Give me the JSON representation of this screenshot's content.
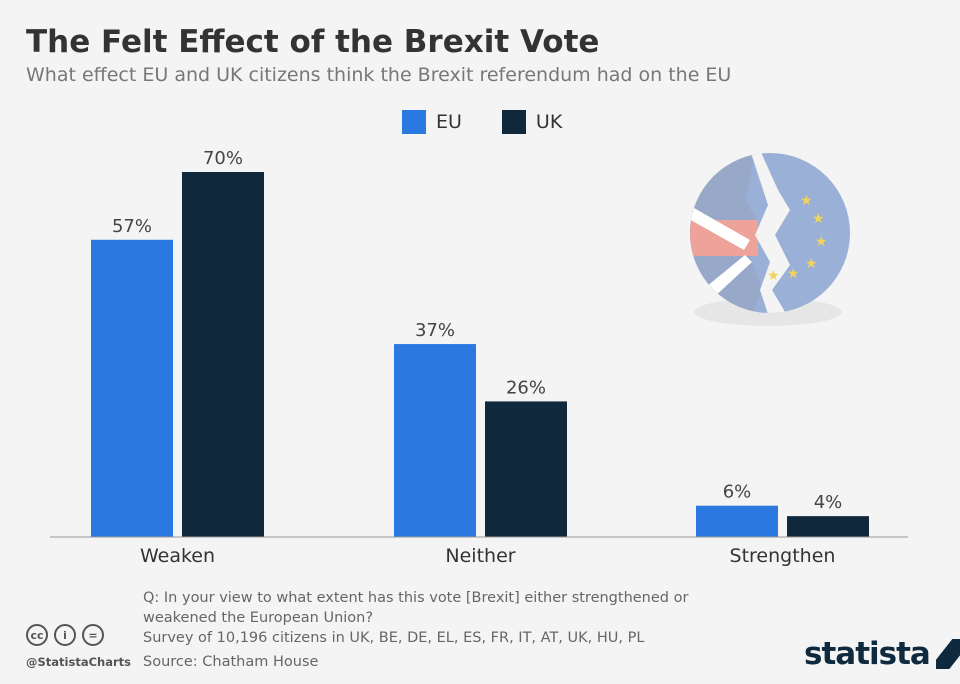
{
  "title": "The Felt Effect of the Brexit Vote",
  "subtitle": "What effect EU and UK citizens think the Brexit referendum had on the EU",
  "colors": {
    "EU": "#2a78e0",
    "UK": "#10283c",
    "background": "#f4f4f4"
  },
  "chart_data": {
    "type": "bar",
    "categories": [
      "Weaken",
      "Neither",
      "Strengthen"
    ],
    "series": [
      {
        "name": "EU",
        "values": [
          57,
          37,
          6
        ]
      },
      {
        "name": "UK",
        "values": [
          70,
          26,
          4
        ]
      }
    ],
    "value_suffix": "%",
    "ylim": [
      0,
      70
    ],
    "grid": false,
    "legend": "top-center"
  },
  "notes": {
    "question": "Q: In your view to what extent has this vote [Brexit] either strengthened or weakened the European Union?",
    "survey": "Survey of 10,196 citizens in UK, BE, DE, EL, ES, FR, IT, AT, UK, HU, PL",
    "source": "Source: Chatham House"
  },
  "footer": {
    "handle": "@StatistaCharts",
    "logo": "statista",
    "license_icons": [
      "cc-icon",
      "by-icon",
      "nd-icon"
    ]
  },
  "illustration": "broken-union-jack-eu-flag"
}
